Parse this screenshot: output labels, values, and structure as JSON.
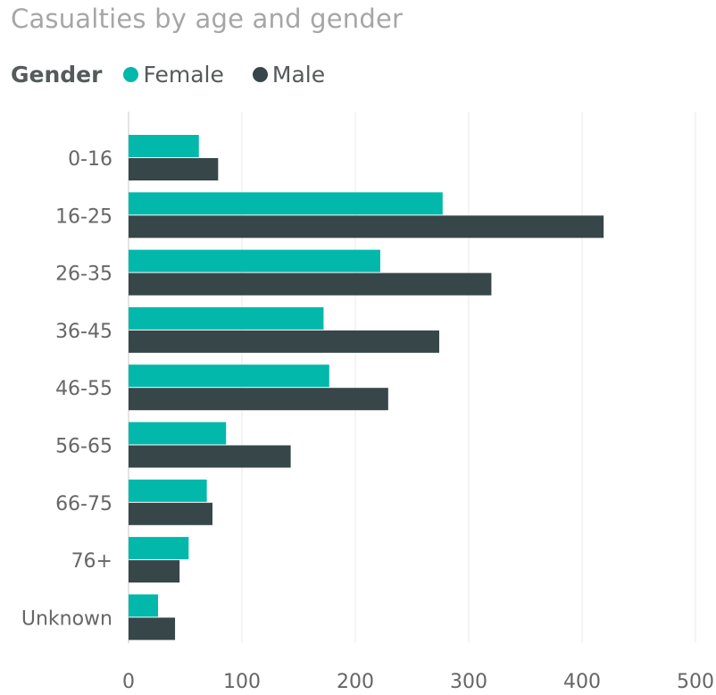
{
  "chart_data": {
    "type": "bar",
    "orientation": "horizontal",
    "title": "Casualties by age and gender",
    "legend_title": "Gender",
    "legend_position": "top-left",
    "categories": [
      "0-16",
      "16-25",
      "26-35",
      "36-45",
      "46-55",
      "56-65",
      "66-75",
      "76+",
      "Unknown"
    ],
    "series": [
      {
        "name": "Female",
        "color": "#01b8aa",
        "values": [
          62,
          277,
          222,
          172,
          177,
          86,
          69,
          53,
          26
        ]
      },
      {
        "name": "Male",
        "color": "#374649",
        "values": [
          79,
          419,
          320,
          274,
          229,
          143,
          74,
          45,
          41
        ]
      }
    ],
    "xlim": [
      0,
      500
    ],
    "xticks": [
      "0",
      "100",
      "200",
      "300",
      "400",
      "500"
    ],
    "grid": true
  }
}
